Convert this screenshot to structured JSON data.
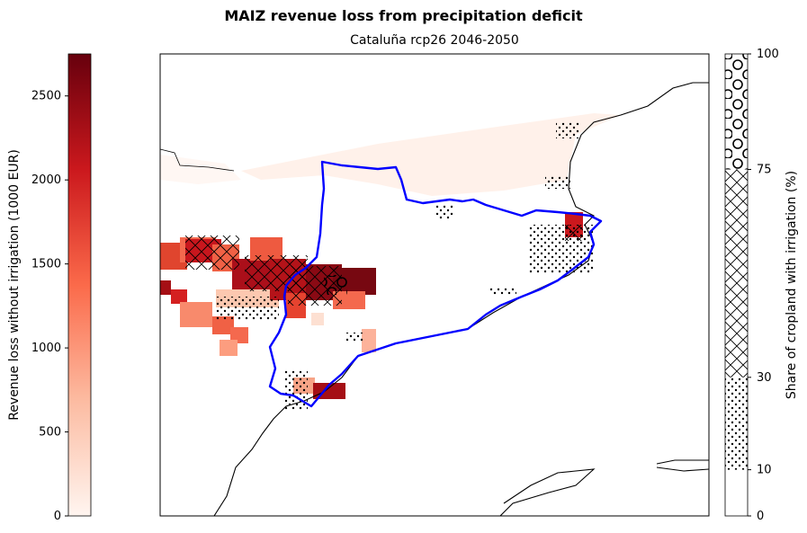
{
  "chart_data": {
    "type": "heatmap",
    "title": "MAIZ revenue loss from precipitation deficit",
    "subtitle": "Cataluña rcp26 2046-2050",
    "colorbar_left": {
      "label": "Revenue loss without irrigation (1000 EUR)",
      "min": 0,
      "max": 2750,
      "ticks": [
        0,
        500,
        1000,
        1500,
        2000,
        2500
      ],
      "tick_labels": [
        "0",
        "500",
        "1000",
        "1500",
        "2000",
        "2500"
      ],
      "colormap": "Reds",
      "colors": [
        "#fff5f0",
        "#fcbba1",
        "#fb6a4a",
        "#cb181d",
        "#67000d"
      ]
    },
    "colorbar_right": {
      "label": "Share of cropland with irrigation (%)",
      "ticks": [
        0,
        10,
        30,
        75,
        100
      ],
      "tick_labels": [
        "0",
        "10",
        "30",
        "75",
        "100"
      ],
      "bands": [
        {
          "from": 0,
          "to": 10,
          "hatch": "none"
        },
        {
          "from": 10,
          "to": 30,
          "hatch": "dots"
        },
        {
          "from": 30,
          "to": 75,
          "hatch": "crosshatch"
        },
        {
          "from": 75,
          "to": 100,
          "hatch": "circles"
        }
      ]
    },
    "map": {
      "region": "Cataluña",
      "region_outline_color": "#0000ff",
      "coastline_color": "#000000"
    }
  }
}
